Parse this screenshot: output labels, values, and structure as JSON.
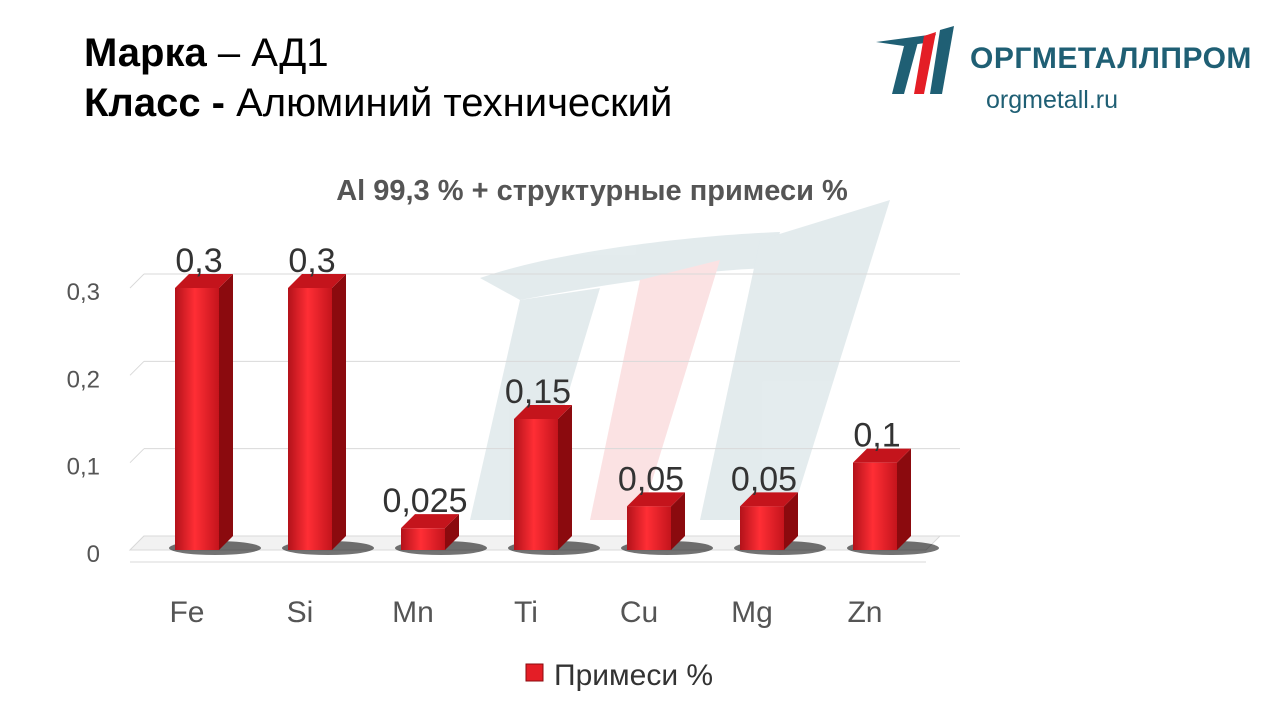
{
  "header": {
    "line1_bold": "Марка",
    "line1_rest": " – АД1",
    "line2_bold": "Класс -",
    "line2_rest": " Алюминий технический"
  },
  "logo": {
    "name": "ОРГМЕТАЛЛПРОМ",
    "url": "orgmetall.ru",
    "icon": "orgmetallprom-logo-icon"
  },
  "colors": {
    "bar": "#e41e26",
    "bar_dark": "#8b0a0e",
    "logo_blue": "#1f5f74",
    "logo_red": "#e41e26"
  },
  "chart_data": {
    "type": "bar",
    "title": "Al 99,3 % + структурные примеси %",
    "categories": [
      "Fe",
      "Si",
      "Mn",
      "Ti",
      "Cu",
      "Mg",
      "Zn"
    ],
    "series": [
      {
        "name": "Примеси %",
        "values": [
          0.3,
          0.3,
          0.025,
          0.15,
          0.05,
          0.05,
          0.1
        ],
        "labels": [
          "0,3",
          "0,3",
          "0,025",
          "0,15",
          "0,05",
          "0,05",
          "0,1"
        ]
      }
    ],
    "yticks": [
      0,
      0.1,
      0.2,
      0.3
    ],
    "ytick_labels": [
      "0",
      "0,1",
      "0,2",
      "0,3"
    ],
    "ylim": [
      0,
      0.3
    ],
    "grid": true,
    "legend": "bottom",
    "style": "3d-column"
  }
}
